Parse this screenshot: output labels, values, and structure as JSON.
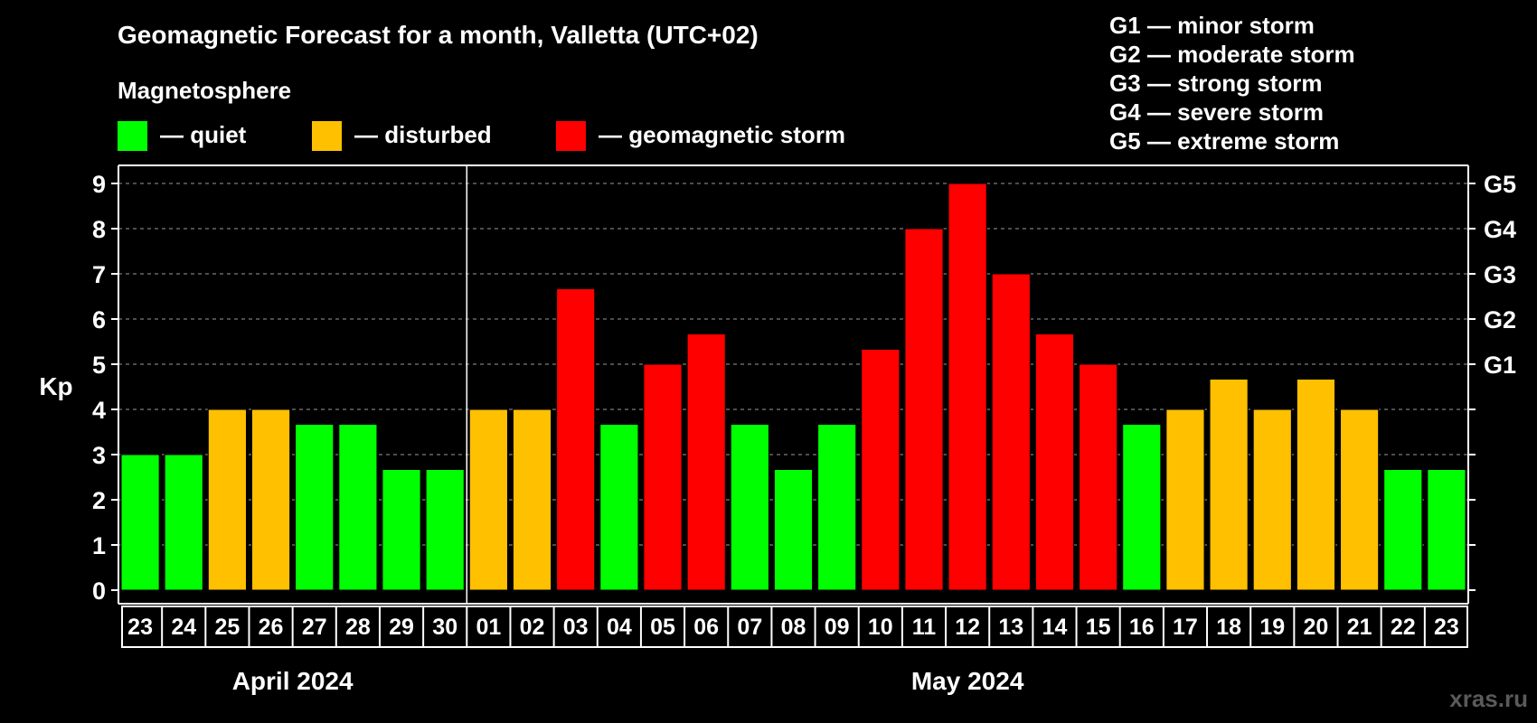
{
  "chart_data": {
    "type": "bar",
    "title": "Geomagnetic Forecast for a month, Valletta (UTC+02)",
    "ylabel": "Kp",
    "ylim": [
      0,
      9
    ],
    "yticks": [
      "0",
      "1",
      "2",
      "3",
      "4",
      "5",
      "6",
      "7",
      "8",
      "9"
    ],
    "legend_title": "Magnetosphere",
    "legend": [
      {
        "label": "— quiet",
        "color": "#00ff00"
      },
      {
        "label": "— disturbed",
        "color": "#ffc000"
      },
      {
        "label": "— geomagnetic storm",
        "color": "#ff0000"
      }
    ],
    "storm_scale": [
      "G1 — minor storm",
      "G2 — moderate storm",
      "G3 — strong storm",
      "G4 — severe storm",
      "G5 — extreme storm"
    ],
    "right_axis": [
      {
        "kp": 5,
        "label": "G1"
      },
      {
        "kp": 6,
        "label": "G2"
      },
      {
        "kp": 7,
        "label": "G3"
      },
      {
        "kp": 8,
        "label": "G4"
      },
      {
        "kp": 9,
        "label": "G5"
      }
    ],
    "categories": [
      "23",
      "24",
      "25",
      "26",
      "27",
      "28",
      "29",
      "30",
      "01",
      "02",
      "03",
      "04",
      "05",
      "06",
      "07",
      "08",
      "09",
      "10",
      "11",
      "12",
      "13",
      "14",
      "15",
      "16",
      "17",
      "18",
      "19",
      "20",
      "21",
      "22",
      "23"
    ],
    "values": [
      3,
      3,
      4,
      4,
      3.67,
      3.67,
      2.67,
      2.67,
      4,
      4,
      6.67,
      3.67,
      5,
      5.67,
      3.67,
      2.67,
      3.67,
      5.33,
      8,
      9,
      7,
      5.67,
      5,
      3.67,
      4,
      4.67,
      4,
      4.67,
      4,
      2.67,
      2.67
    ],
    "levels": [
      "quiet",
      "quiet",
      "disturbed",
      "disturbed",
      "quiet",
      "quiet",
      "quiet",
      "quiet",
      "disturbed",
      "disturbed",
      "storm",
      "quiet",
      "storm",
      "storm",
      "quiet",
      "quiet",
      "quiet",
      "storm",
      "storm",
      "storm",
      "storm",
      "storm",
      "storm",
      "quiet",
      "disturbed",
      "disturbed",
      "disturbed",
      "disturbed",
      "disturbed",
      "quiet",
      "quiet"
    ],
    "colors": {
      "quiet": "#00ff00",
      "disturbed": "#ffc000",
      "storm": "#ff0000"
    },
    "months": [
      {
        "label": "April 2024",
        "start_index": 0,
        "end_index": 7
      },
      {
        "label": "May 2024",
        "start_index": 8,
        "end_index": 30
      }
    ],
    "month_divider_after_index": 7
  },
  "watermark": "xras.ru"
}
